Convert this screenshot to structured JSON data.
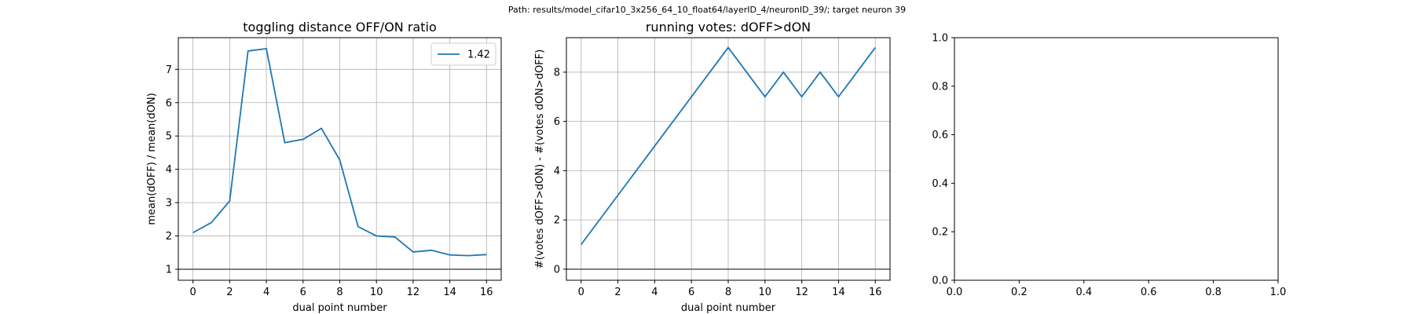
{
  "suptitle": "Path: results/model_cifar10_3x256_64_10_float64/layerID_4/neuronID_39/; target neuron 39",
  "line_color": "#1f77b4",
  "chart_data": [
    {
      "type": "line",
      "title": "toggling distance OFF/ON ratio",
      "xlabel": "dual point number",
      "ylabel": "mean(dOFF) / mean(dON)",
      "xlim": [
        -0.8,
        16.8
      ],
      "ylim": [
        0.67,
        7.95
      ],
      "xticks": [
        0,
        2,
        4,
        6,
        8,
        10,
        12,
        14,
        16
      ],
      "yticks": [
        1,
        2,
        3,
        4,
        5,
        6,
        7
      ],
      "grid": true,
      "hline": 1,
      "legend": {
        "placement": "top-right",
        "entries": [
          "1.42"
        ]
      },
      "series": [
        {
          "name": "1.42",
          "x": [
            0,
            1,
            2,
            3,
            4,
            5,
            6,
            7,
            8,
            9,
            10,
            11,
            12,
            13,
            14,
            15,
            16
          ],
          "y": [
            2.1,
            2.4,
            3.05,
            7.55,
            7.62,
            4.8,
            4.9,
            5.23,
            4.28,
            2.28,
            2.0,
            1.97,
            1.52,
            1.57,
            1.43,
            1.41,
            1.44
          ]
        }
      ]
    },
    {
      "type": "line",
      "title": "running votes: dOFF>dON",
      "xlabel": "dual point number",
      "ylabel": "#(votes dOFF>dON) - #(votes dON>dOFF)",
      "xlim": [
        -0.8,
        16.8
      ],
      "ylim": [
        -0.45,
        9.4
      ],
      "xticks": [
        0,
        2,
        4,
        6,
        8,
        10,
        12,
        14,
        16
      ],
      "yticks": [
        0,
        2,
        4,
        6,
        8
      ],
      "grid": true,
      "hline": 0,
      "series": [
        {
          "x": [
            0,
            1,
            2,
            3,
            4,
            5,
            6,
            7,
            8,
            9,
            10,
            11,
            12,
            13,
            14,
            15,
            16
          ],
          "y": [
            1,
            2,
            3,
            4,
            5,
            6,
            7,
            8,
            9,
            8,
            7,
            8,
            7,
            8,
            7,
            8,
            9
          ]
        }
      ]
    },
    {
      "type": "line",
      "title": "",
      "xlabel": "",
      "ylabel": "",
      "xlim": [
        0,
        1
      ],
      "ylim": [
        0,
        1
      ],
      "xticks": [
        0.0,
        0.2,
        0.4,
        0.6,
        0.8,
        1.0
      ],
      "yticks": [
        0.0,
        0.2,
        0.4,
        0.6,
        0.8,
        1.0
      ],
      "tick_format": "0.0",
      "grid": false,
      "series": []
    }
  ]
}
